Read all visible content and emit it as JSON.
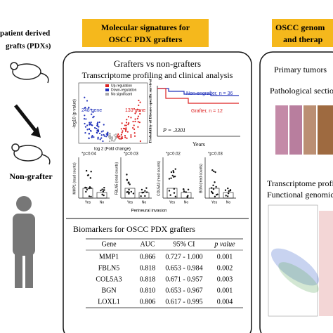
{
  "left": {
    "title_lines": [
      "patient derived",
      "grafts (PDXs)"
    ],
    "label": "Non-grafter"
  },
  "center": {
    "header_lines": [
      "Molecular signatures for",
      "OSCC PDX grafters"
    ],
    "title_lines": [
      "Grafters vs non-grafters",
      "Transcriptome profiling and clinical analysis"
    ],
    "volcano": {
      "legend": [
        "Up-regulation",
        "Down-regulation",
        "No significant"
      ],
      "down_count": "248 gene",
      "up_count": "133 gene",
      "x_label": "log 2 (Fold change)",
      "y_label": "-log10 (p value)"
    },
    "survival": {
      "series": [
        "Non-engrafter, n = 36",
        "Grafter, n = 12"
      ],
      "p_value": "P = .3301",
      "x_label": "Years",
      "y_label": "Probability of Disease-specific survival"
    },
    "dotplots": [
      {
        "p": "*p=0.04",
        "y_label": "MMP1 (read counts)"
      },
      {
        "p": "*p=0.03",
        "y_label": "FBLN5 (read counts)"
      },
      {
        "p": "*p=0.02",
        "y_label": "COL5A3 (read counts)"
      },
      {
        "p": "*p=0.03",
        "y_label": "BGN (read counts)"
      }
    ],
    "group_labels": [
      "Yes",
      "No"
    ],
    "x_label": "Perineural invasion",
    "biomarkers": {
      "title": "Biomarkers for OSCC PDX grafters",
      "columns": [
        "Gene",
        "AUC",
        "95% CI",
        "p value"
      ],
      "rows": [
        [
          "MMP1",
          "0.866",
          "0.727 - 1.000",
          "0.001"
        ],
        [
          "FBLN5",
          "0.818",
          "0.653 - 0.984",
          "0.002"
        ],
        [
          "COL5A3",
          "0.818",
          "0.671 - 0.957",
          "0.003"
        ],
        [
          "BGN",
          "0.810",
          "0.653 - 0.967",
          "0.001"
        ],
        [
          "LOXL1",
          "0.806",
          "0.617 - 0.995",
          "0.004"
        ]
      ]
    }
  },
  "right": {
    "header_lines": [
      "OSCC genom",
      "and therap"
    ],
    "items": [
      "Primary tumors",
      "Pathological section",
      "Transcriptome profi",
      "Functional genomic"
    ]
  }
}
